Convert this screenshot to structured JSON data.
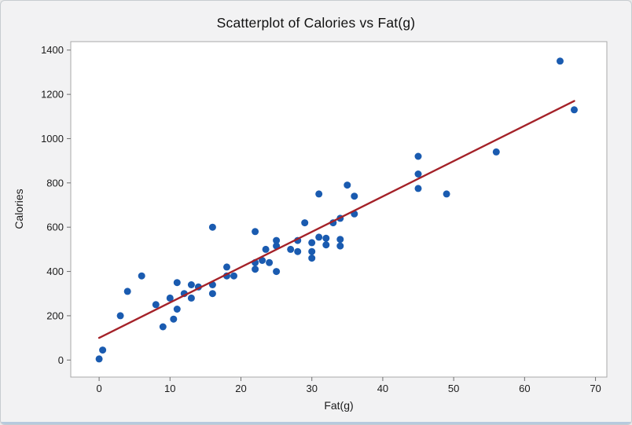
{
  "figure": {
    "outer_background": "#f2f2f3",
    "plot_background": "#ffffff",
    "plot_border_color": "#a8a8a8",
    "tick_color": "#6e6e6e",
    "text_color": "#1b1b1b"
  },
  "chart_data": {
    "type": "scatter",
    "title": "Scatterplot of Calories vs Fat(g)",
    "xlabel": "Fat(g)",
    "ylabel": "Calories",
    "x_ticks": [
      0,
      10,
      20,
      30,
      40,
      50,
      60,
      70
    ],
    "y_ticks": [
      0,
      200,
      400,
      600,
      800,
      1000,
      1200,
      1400
    ],
    "xlim": [
      -4,
      71.6
    ],
    "ylim": [
      -77,
      1438
    ],
    "grid": false,
    "legend": null,
    "point_color": "#1a5bb0",
    "points": [
      [
        0,
        5
      ],
      [
        0.5,
        45
      ],
      [
        3,
        200
      ],
      [
        4,
        310
      ],
      [
        6,
        380
      ],
      [
        8,
        250
      ],
      [
        9,
        150
      ],
      [
        10,
        280
      ],
      [
        11,
        350
      ],
      [
        11,
        230
      ],
      [
        10.5,
        185
      ],
      [
        12,
        300
      ],
      [
        13,
        340
      ],
      [
        13,
        280
      ],
      [
        14,
        330
      ],
      [
        16,
        600
      ],
      [
        16,
        340
      ],
      [
        16,
        300
      ],
      [
        18,
        420
      ],
      [
        18,
        380
      ],
      [
        19,
        380
      ],
      [
        22,
        580
      ],
      [
        22,
        440
      ],
      [
        22,
        410
      ],
      [
        23,
        450
      ],
      [
        24,
        440
      ],
      [
        25,
        400
      ],
      [
        23.5,
        500
      ],
      [
        25,
        540
      ],
      [
        25,
        515
      ],
      [
        27,
        500
      ],
      [
        28,
        540
      ],
      [
        28,
        490
      ],
      [
        29,
        620
      ],
      [
        30,
        530
      ],
      [
        30,
        490
      ],
      [
        30,
        460
      ],
      [
        31,
        750
      ],
      [
        31,
        555
      ],
      [
        32,
        550
      ],
      [
        32,
        520
      ],
      [
        34,
        545
      ],
      [
        34,
        515
      ],
      [
        33,
        620
      ],
      [
        34,
        640
      ],
      [
        35,
        790
      ],
      [
        36,
        740
      ],
      [
        36,
        660
      ],
      [
        45,
        920
      ],
      [
        45,
        840
      ],
      [
        45,
        775
      ],
      [
        49,
        750
      ],
      [
        56,
        940
      ],
      [
        65,
        1350
      ],
      [
        67,
        1130
      ]
    ],
    "trend_line": {
      "color": "#a42128",
      "x1": 0,
      "y1": 100,
      "x2": 67,
      "y2": 1170
    }
  }
}
